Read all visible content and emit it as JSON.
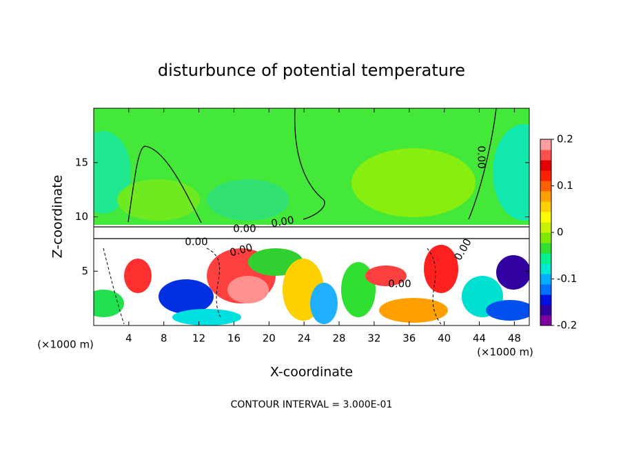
{
  "chart_data": {
    "type": "contour",
    "title": "disturbunce of potential temperature",
    "xlabel": "X-coordinate",
    "ylabel": "Z-coordinate",
    "x_unit_labels": [
      "(×1000 m)",
      "(×1000 m)"
    ],
    "footnote": "CONTOUR INTERVAL = 3.000E-01",
    "contour_labels": [
      "0.00",
      "0.00",
      "0.00",
      "0.00",
      "0.00",
      "0.00",
      "0.00"
    ],
    "xlim": [
      0,
      49.7
    ],
    "xticks": [
      4,
      8,
      12,
      16,
      20,
      24,
      28,
      32,
      36,
      40,
      44,
      48
    ],
    "ylim": [
      0,
      20
    ],
    "yticks": [
      5,
      10,
      15
    ],
    "clim": [
      -0.2,
      0.2
    ],
    "cticks": [
      -0.2,
      -0.1,
      0,
      0.1,
      0.2
    ],
    "colorbar_colors": [
      "#8000a0",
      "#3000a0",
      "#0010e0",
      "#0070ff",
      "#00b0ff",
      "#00e8d0",
      "#00f090",
      "#30e030",
      "#80e800",
      "#c8f000",
      "#ffff00",
      "#ffd000",
      "#ffa000",
      "#ff6000",
      "#ff2000",
      "#e00000",
      "#ff5050",
      "#ffa0a0"
    ]
  }
}
